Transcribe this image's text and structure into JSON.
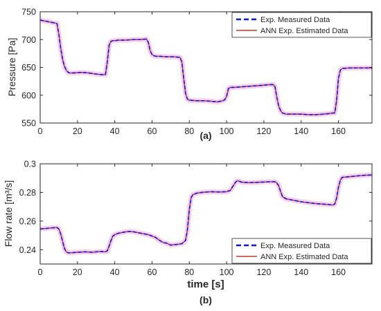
{
  "colors": {
    "measured": "#0a14d8",
    "estimated": "#c0392b",
    "halo": "#f2c6ee",
    "axis": "#262626",
    "grid": "#e6e6e6"
  },
  "chart_data": [
    {
      "type": "line",
      "panel_label": "(a)",
      "xlabel": "",
      "ylabel": "Pressure [Pa]",
      "xlim": [
        0,
        178
      ],
      "ylim": [
        550,
        750
      ],
      "xticks": [
        0,
        20,
        40,
        60,
        80,
        100,
        120,
        140,
        160
      ],
      "yticks": [
        550,
        600,
        650,
        700,
        750
      ],
      "xtick_labels": [
        "0",
        "20",
        "40",
        "60",
        "80",
        "100",
        "120",
        "140",
        "160"
      ],
      "ytick_labels": [
        "550",
        "600",
        "650",
        "700",
        "750"
      ],
      "grid": false,
      "legend_position": "top-right",
      "series": [
        {
          "name": "Exp. Measured Data",
          "style": "dashed",
          "x": [
            0,
            3,
            6,
            9,
            10,
            11,
            12,
            13,
            14,
            15,
            16,
            18,
            22,
            26,
            30,
            33,
            35,
            36,
            37,
            38,
            39,
            40,
            42,
            46,
            50,
            54,
            57,
            58,
            59,
            60,
            61,
            62,
            64,
            68,
            72,
            75,
            76,
            77,
            78,
            79,
            80,
            84,
            88,
            92,
            95,
            98,
            99,
            100,
            101,
            102,
            104,
            108,
            112,
            116,
            120,
            123,
            125,
            126,
            127,
            128,
            129,
            130,
            132,
            136,
            140,
            144,
            148,
            152,
            155,
            157,
            158,
            159,
            160,
            161,
            162,
            166,
            170,
            174,
            178
          ],
          "y": [
            735,
            733,
            731,
            729,
            710,
            685,
            665,
            652,
            645,
            641,
            640,
            640,
            641,
            640,
            638,
            637,
            637,
            660,
            690,
            697,
            698,
            698,
            699,
            699,
            700,
            700,
            701,
            695,
            680,
            673,
            671,
            670,
            670,
            669,
            669,
            668,
            660,
            630,
            603,
            593,
            591,
            590,
            590,
            589,
            588,
            590,
            592,
            598,
            612,
            614,
            614,
            615,
            616,
            617,
            618,
            619,
            619,
            615,
            595,
            580,
            572,
            568,
            566,
            566,
            566,
            565,
            565,
            566,
            567,
            568,
            568,
            590,
            630,
            645,
            648,
            649,
            649,
            649,
            649
          ]
        },
        {
          "name": "ANN Exp. Estimated Data",
          "style": "solid",
          "x": [
            0,
            3,
            6,
            9,
            10,
            11,
            12,
            13,
            14,
            15,
            16,
            18,
            22,
            26,
            30,
            33,
            35,
            36,
            37,
            38,
            39,
            40,
            42,
            46,
            50,
            54,
            57,
            58,
            59,
            60,
            61,
            62,
            64,
            68,
            72,
            75,
            76,
            77,
            78,
            79,
            80,
            84,
            88,
            92,
            95,
            98,
            99,
            100,
            101,
            102,
            104,
            108,
            112,
            116,
            120,
            123,
            125,
            126,
            127,
            128,
            129,
            130,
            132,
            136,
            140,
            144,
            148,
            152,
            155,
            157,
            158,
            159,
            160,
            161,
            162,
            166,
            170,
            174,
            178
          ],
          "y": [
            735,
            733,
            731,
            729,
            710,
            685,
            665,
            652,
            645,
            641,
            640,
            640,
            641,
            640,
            638,
            637,
            637,
            660,
            690,
            697,
            698,
            698,
            699,
            699,
            700,
            700,
            701,
            695,
            680,
            673,
            671,
            670,
            670,
            669,
            669,
            668,
            660,
            630,
            603,
            593,
            591,
            590,
            590,
            589,
            588,
            590,
            592,
            598,
            612,
            614,
            614,
            615,
            616,
            617,
            618,
            619,
            619,
            615,
            595,
            580,
            572,
            568,
            566,
            566,
            566,
            565,
            565,
            566,
            567,
            568,
            568,
            590,
            630,
            645,
            648,
            649,
            649,
            649,
            649
          ]
        }
      ]
    },
    {
      "type": "line",
      "panel_label": "(b)",
      "xlabel": "time [s]",
      "ylabel": "Flow rate [m³/s]",
      "xlim": [
        0,
        178
      ],
      "ylim": [
        0.23,
        0.3
      ],
      "xticks": [
        0,
        20,
        40,
        60,
        80,
        100,
        120,
        140,
        160
      ],
      "yticks": [
        0.24,
        0.26,
        0.28,
        0.3
      ],
      "xtick_labels": [
        "0",
        "20",
        "40",
        "60",
        "80",
        "100",
        "120",
        "140",
        "160"
      ],
      "ytick_labels": [
        "0.24",
        "0.26",
        "0.28",
        "0.3"
      ],
      "grid": false,
      "legend_position": "bottom-right",
      "series": [
        {
          "name": "Exp. Measured Data",
          "style": "dashed",
          "x": [
            0,
            3,
            6,
            9,
            10,
            11,
            12,
            13,
            14,
            15,
            16,
            20,
            24,
            28,
            32,
            35,
            36,
            37,
            38,
            39,
            40,
            42,
            46,
            48,
            50,
            54,
            58,
            60,
            62,
            64,
            66,
            68,
            70,
            72,
            74,
            76,
            78,
            79,
            80,
            81,
            82,
            84,
            88,
            92,
            96,
            100,
            102,
            104,
            105,
            106,
            108,
            112,
            116,
            120,
            124,
            126,
            127,
            128,
            129,
            130,
            132,
            136,
            140,
            144,
            148,
            152,
            155,
            157,
            158,
            159,
            160,
            161,
            162,
            166,
            170,
            174,
            178
          ],
          "y": [
            0.2545,
            0.2548,
            0.2552,
            0.2555,
            0.2545,
            0.251,
            0.246,
            0.241,
            0.2385,
            0.2378,
            0.2378,
            0.2382,
            0.2385,
            0.2382,
            0.2388,
            0.2385,
            0.2392,
            0.2425,
            0.2465,
            0.2495,
            0.2505,
            0.2515,
            0.2525,
            0.2528,
            0.2525,
            0.2515,
            0.2505,
            0.2495,
            0.2485,
            0.2465,
            0.245,
            0.2445,
            0.2432,
            0.2435,
            0.2438,
            0.2442,
            0.2465,
            0.254,
            0.268,
            0.2765,
            0.2785,
            0.2795,
            0.2802,
            0.2805,
            0.2803,
            0.2805,
            0.2815,
            0.2855,
            0.2875,
            0.2882,
            0.2872,
            0.2868,
            0.287,
            0.2873,
            0.2875,
            0.2875,
            0.2865,
            0.2845,
            0.2805,
            0.277,
            0.2755,
            0.2745,
            0.2735,
            0.2728,
            0.2722,
            0.2718,
            0.2715,
            0.2712,
            0.2718,
            0.276,
            0.2835,
            0.2885,
            0.2905,
            0.291,
            0.2915,
            0.292,
            0.2922
          ]
        },
        {
          "name": "ANN Exp. Estimated Data",
          "style": "solid",
          "x": [
            0,
            3,
            6,
            9,
            10,
            11,
            12,
            13,
            14,
            15,
            16,
            20,
            24,
            28,
            32,
            35,
            36,
            37,
            38,
            39,
            40,
            42,
            46,
            48,
            50,
            54,
            58,
            60,
            62,
            64,
            66,
            68,
            70,
            72,
            74,
            76,
            78,
            79,
            80,
            81,
            82,
            84,
            88,
            92,
            96,
            100,
            102,
            104,
            105,
            106,
            108,
            112,
            116,
            120,
            124,
            126,
            127,
            128,
            129,
            130,
            132,
            136,
            140,
            144,
            148,
            152,
            155,
            157,
            158,
            159,
            160,
            161,
            162,
            166,
            170,
            174,
            178
          ],
          "y": [
            0.2545,
            0.2548,
            0.2552,
            0.2555,
            0.2545,
            0.251,
            0.246,
            0.241,
            0.2385,
            0.2378,
            0.2378,
            0.2382,
            0.2385,
            0.2382,
            0.2388,
            0.2385,
            0.2392,
            0.2425,
            0.2465,
            0.2495,
            0.2505,
            0.2515,
            0.2525,
            0.2528,
            0.2525,
            0.2515,
            0.2505,
            0.2495,
            0.2485,
            0.2465,
            0.245,
            0.2445,
            0.2432,
            0.2435,
            0.2438,
            0.2442,
            0.2465,
            0.254,
            0.268,
            0.2765,
            0.2785,
            0.2795,
            0.2802,
            0.2805,
            0.2803,
            0.2805,
            0.2815,
            0.2855,
            0.2875,
            0.2882,
            0.2872,
            0.2868,
            0.287,
            0.2873,
            0.2875,
            0.2875,
            0.2865,
            0.2845,
            0.2805,
            0.277,
            0.2755,
            0.2745,
            0.2735,
            0.2728,
            0.2722,
            0.2718,
            0.2715,
            0.2712,
            0.2718,
            0.276,
            0.2835,
            0.2885,
            0.2905,
            0.291,
            0.2915,
            0.292,
            0.2922
          ]
        }
      ]
    }
  ]
}
